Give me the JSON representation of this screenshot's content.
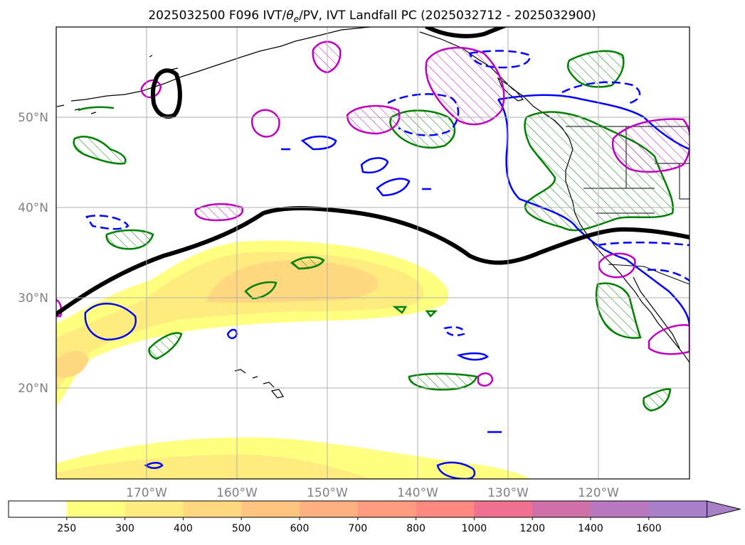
{
  "title": "2025032500 F096 IVT/θe/PV, IVT Landfall PC (2025032712 - 2025032900)",
  "title_parts": {
    "pre": "2025032500 F096 IVT/",
    "theta": "θ",
    "sub": "e",
    "post": "/PV, IVT Landfall PC (2025032712 - 2025032900)"
  },
  "map": {
    "projection": "PlateCarree",
    "lon_range": [
      -180,
      -110
    ],
    "lat_range": [
      10,
      60
    ],
    "gridlines": true,
    "lat_labels": [
      "50°N",
      "40°N",
      "30°N",
      "20°N"
    ],
    "lon_labels": [
      "170°W",
      "160°W",
      "150°W",
      "140°W",
      "130°W",
      "120°W"
    ],
    "label_color": "#808080"
  },
  "colorbar": {
    "ticks": [
      "250",
      "300",
      "400",
      "500",
      "600",
      "700",
      "800",
      "1000",
      "1200",
      "1400",
      "1600"
    ],
    "colors": [
      "#ffffff",
      "#ffff80",
      "#ffec80",
      "#ffd880",
      "#ffc480",
      "#ffb080",
      "#ff9c80",
      "#ff8880",
      "#f07090",
      "#d070a8",
      "#b878c0",
      "#a880c8"
    ],
    "extend": "max"
  },
  "layers": {
    "ivt_fill": {
      "name": "IVT",
      "colors": [
        "#ffff80",
        "#ffec80",
        "#ffd880"
      ]
    },
    "theta_e_contour": {
      "color": "#0000ff"
    },
    "pv_contour": {
      "color": "#008000"
    },
    "landfall_pc_contour": {
      "color": "#c000c0"
    },
    "jet_contour": {
      "color": "#000000"
    },
    "coastlines": {
      "color": "#000000"
    }
  }
}
